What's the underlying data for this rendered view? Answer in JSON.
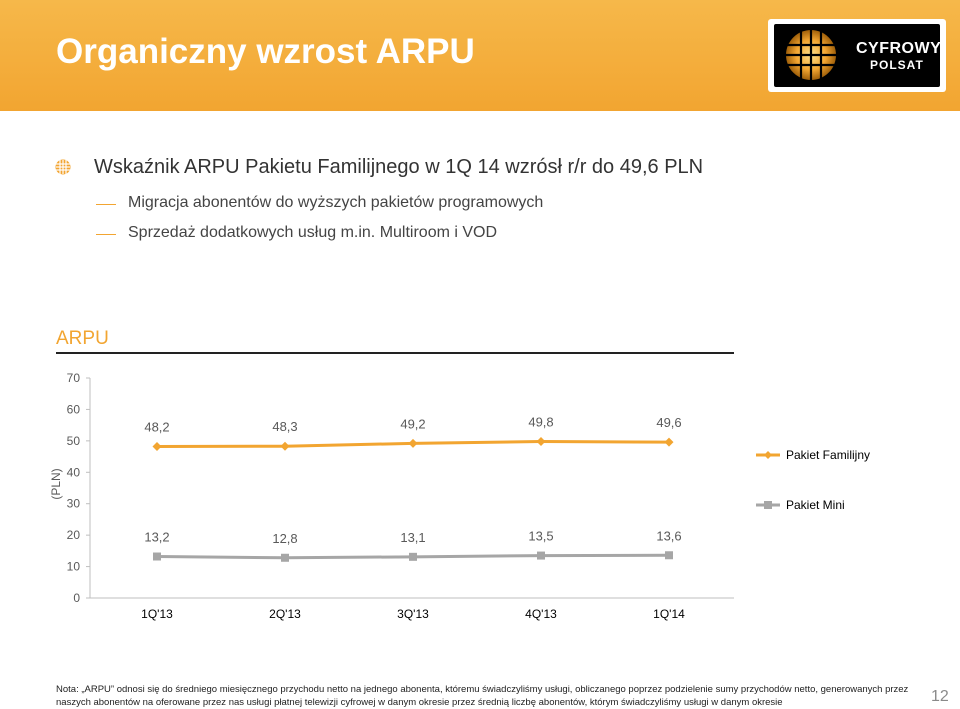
{
  "header": {
    "title": "Organiczny wzrost ARPU",
    "logo_word1": "CYFROWY",
    "logo_word2": "POLSAT"
  },
  "bullet": {
    "main": "Wskaźnik ARPU Pakietu Familijnego w 1Q 14 wzrósł r/r do 49,6 PLN"
  },
  "sub_items": [
    {
      "label": "Migracja abonentów do wyższych pakietów programowych"
    },
    {
      "label": "Sprzedaż dodatkowych usług m.in. Multiroom i VOD"
    }
  ],
  "section_label": "ARPU",
  "chart_data": {
    "type": "line",
    "categories": [
      "1Q'13",
      "2Q'13",
      "3Q'13",
      "4Q'13",
      "1Q'14"
    ],
    "ylabel": "(PLN)",
    "ylim": [
      0,
      70
    ],
    "yticks": [
      "0",
      "10",
      "20",
      "30",
      "40",
      "50",
      "60",
      "70"
    ],
    "legend_position": "right",
    "series": [
      {
        "name": "Pakiet Familijny",
        "values": [
          48.2,
          48.3,
          49.2,
          49.8,
          49.6
        ],
        "labels": [
          "48,2",
          "48,3",
          "49,2",
          "49,8",
          "49,6"
        ],
        "color": "#f2a531",
        "marker": "diamond"
      },
      {
        "name": "Pakiet Mini",
        "values": [
          13.2,
          12.8,
          13.1,
          13.5,
          13.6
        ],
        "labels": [
          "13,2",
          "12,8",
          "13,1",
          "13,5",
          "13,6"
        ],
        "color": "#a6a6a6",
        "marker": "square"
      }
    ]
  },
  "note": "Nota: „ARPU” odnosi się do średniego miesięcznego przychodu netto na jednego abonenta, któremu świadczyliśmy usługi, obliczanego poprzez podzielenie sumy przychodów netto, generowanych przez naszych abonentów na oferowane przez nas usługi płatnej telewizji cyfrowej w danym okresie przez średnią liczbę abonentów, którym świadczyliśmy usługi w danym okresie",
  "page_number": "12",
  "colors": {
    "accent": "#f2a531",
    "secondary": "#a6a6a6"
  }
}
